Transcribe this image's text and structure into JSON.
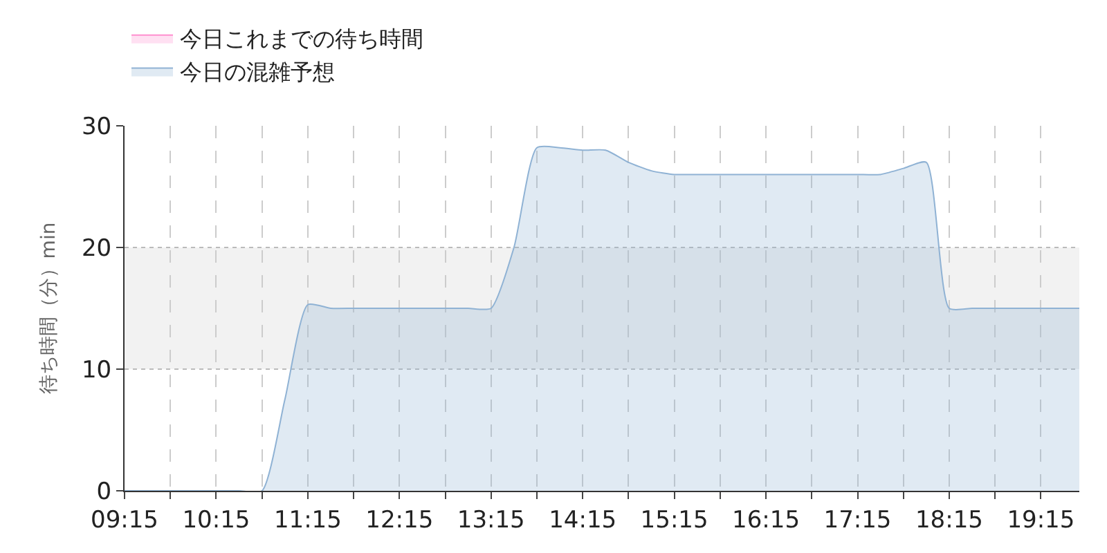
{
  "chart_data": {
    "type": "area",
    "ylabel": "待ち時間（分）min",
    "x": [
      9.25,
      9.5,
      9.75,
      10,
      10.25,
      10.5,
      10.75,
      11,
      11.25,
      11.5,
      11.75,
      12,
      12.25,
      12.5,
      12.75,
      13,
      13.25,
      13.5,
      13.75,
      14,
      14.25,
      14.5,
      14.75,
      15,
      15.25,
      15.5,
      15.75,
      16,
      16.25,
      16.5,
      16.75,
      17,
      17.25,
      17.5,
      17.75,
      18,
      18.25,
      18.5,
      18.75,
      19,
      19.25,
      19.5,
      19.67
    ],
    "series": [
      {
        "name": "今日これまでの待ち時間",
        "color": "#ff8fcf",
        "values": [
          null,
          null,
          null,
          null,
          null,
          null,
          null,
          null,
          null,
          null,
          null,
          null,
          null,
          null,
          null,
          null,
          null,
          null,
          null,
          null,
          null,
          null,
          null,
          null,
          null,
          null,
          null,
          null,
          null,
          null,
          null,
          null,
          null,
          null,
          null,
          null,
          null,
          null,
          null,
          null,
          null,
          null,
          null
        ]
      },
      {
        "name": "今日の混雑予想",
        "color": "#8fb2d4",
        "values": [
          0,
          0,
          0,
          0,
          0,
          0,
          0,
          7.5,
          15.3,
          15,
          15,
          15,
          15,
          15,
          15,
          15,
          15,
          20,
          28.2,
          28.2,
          28,
          28,
          27,
          26.3,
          26,
          26,
          26,
          26,
          26,
          26,
          26,
          26,
          26,
          26,
          26.5,
          27,
          15,
          15,
          15,
          15,
          15,
          15,
          15
        ]
      }
    ],
    "xlim": [
      9.25,
      19.67
    ],
    "xticks": [
      {
        "value": 9.25,
        "label": "09:15"
      },
      {
        "value": 9.75,
        "label": null
      },
      {
        "value": 10.25,
        "label": "10:15"
      },
      {
        "value": 10.75,
        "label": null
      },
      {
        "value": 11.25,
        "label": "11:15"
      },
      {
        "value": 11.75,
        "label": null
      },
      {
        "value": 12.25,
        "label": "12:15"
      },
      {
        "value": 12.75,
        "label": null
      },
      {
        "value": 13.25,
        "label": "13:15"
      },
      {
        "value": 13.75,
        "label": null
      },
      {
        "value": 14.25,
        "label": "14:15"
      },
      {
        "value": 14.75,
        "label": null
      },
      {
        "value": 15.25,
        "label": "15:15"
      },
      {
        "value": 15.75,
        "label": null
      },
      {
        "value": 16.25,
        "label": "16:15"
      },
      {
        "value": 16.75,
        "label": null
      },
      {
        "value": 17.25,
        "label": "17:15"
      },
      {
        "value": 17.75,
        "label": null
      },
      {
        "value": 18.25,
        "label": "18:15"
      },
      {
        "value": 18.75,
        "label": null
      },
      {
        "value": 19.25,
        "label": "19:15"
      }
    ],
    "ylim": [
      0,
      30
    ],
    "yticks": [
      0,
      10,
      20,
      30
    ],
    "bands": [
      {
        "axis": "y",
        "from": 10,
        "to": 20,
        "color": "#f2f2f2"
      }
    ],
    "grid": true,
    "legend": "top left"
  }
}
